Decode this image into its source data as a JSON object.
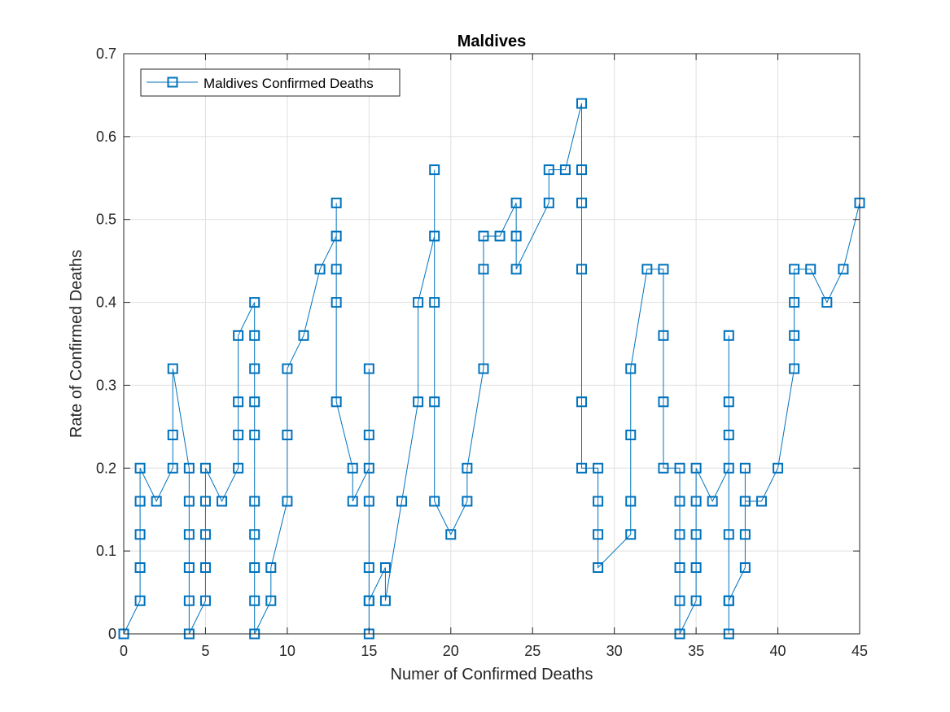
{
  "chart_data": {
    "type": "line",
    "title": "Maldives",
    "xlabel": "Numer of Confirmed Deaths",
    "ylabel": "Rate of Confirmed Deaths",
    "xlim": [
      0,
      45
    ],
    "ylim": [
      0,
      0.7
    ],
    "xticks": [
      "0",
      "5",
      "10",
      "15",
      "20",
      "25",
      "30",
      "35",
      "40",
      "45"
    ],
    "yticks": [
      "0",
      "0.1",
      "0.2",
      "0.3",
      "0.4",
      "0.5",
      "0.6",
      "0.7"
    ],
    "grid": true,
    "legend_position": "top-left",
    "marker": "square",
    "color": "#0072BD",
    "series": [
      {
        "name": "Maldives Confirmed Deaths",
        "x": [
          0,
          0,
          1,
          1,
          1,
          1,
          1,
          2,
          3,
          3,
          3,
          4,
          4,
          4,
          4,
          4,
          4,
          5,
          5,
          5,
          5,
          5,
          6,
          7,
          7,
          7,
          7,
          8,
          8,
          8,
          8,
          8,
          8,
          8,
          8,
          8,
          8,
          9,
          9,
          10,
          10,
          10,
          11,
          12,
          13,
          13,
          13,
          13,
          13,
          14,
          14,
          15,
          15,
          15,
          15,
          15,
          15,
          15,
          15,
          16,
          16,
          17,
          18,
          18,
          19,
          19,
          19,
          19,
          19,
          20,
          21,
          21,
          22,
          22,
          22,
          23,
          24,
          24,
          24,
          26,
          26,
          27,
          28,
          28,
          28,
          28,
          28,
          28,
          29,
          29,
          29,
          29,
          31,
          31,
          31,
          31,
          32,
          33,
          33,
          33,
          33,
          34,
          34,
          34,
          34,
          34,
          34,
          35,
          35,
          35,
          35,
          35,
          36,
          37,
          37,
          37,
          37,
          37,
          37,
          37,
          37,
          38,
          38,
          38,
          38,
          38,
          39,
          40,
          41,
          41,
          41,
          41,
          42,
          43,
          44,
          45
        ],
        "y": [
          0,
          0,
          0.04,
          0.08,
          0.12,
          0.16,
          0.2,
          0.16,
          0.2,
          0.24,
          0.32,
          0.2,
          0.16,
          0.12,
          0.08,
          0.04,
          0,
          0.04,
          0.08,
          0.12,
          0.16,
          0.2,
          0.16,
          0.2,
          0.24,
          0.28,
          0.36,
          0.4,
          0.36,
          0.32,
          0.28,
          0.24,
          0.16,
          0.12,
          0.08,
          0.04,
          0,
          0.04,
          0.08,
          0.16,
          0.24,
          0.32,
          0.36,
          0.44,
          0.48,
          0.52,
          0.44,
          0.4,
          0.28,
          0.2,
          0.16,
          0.2,
          0.24,
          0.32,
          0.16,
          0.08,
          0.04,
          0,
          0.04,
          0.08,
          0.04,
          0.16,
          0.28,
          0.4,
          0.48,
          0.56,
          0.4,
          0.28,
          0.16,
          0.12,
          0.16,
          0.2,
          0.32,
          0.44,
          0.48,
          0.48,
          0.52,
          0.48,
          0.44,
          0.52,
          0.56,
          0.56,
          0.64,
          0.56,
          0.52,
          0.44,
          0.28,
          0.2,
          0.2,
          0.16,
          0.12,
          0.08,
          0.12,
          0.16,
          0.24,
          0.32,
          0.44,
          0.44,
          0.36,
          0.28,
          0.2,
          0.2,
          0.16,
          0.12,
          0.08,
          0.04,
          0,
          0.04,
          0.08,
          0.12,
          0.16,
          0.2,
          0.16,
          0.2,
          0.24,
          0.28,
          0.36,
          0.12,
          0.04,
          0,
          0.04,
          0.08,
          0.12,
          0.16,
          0.2,
          0.16,
          0.16,
          0.2,
          0.32,
          0.36,
          0.4,
          0.44,
          0.44,
          0.4,
          0.44,
          0.52
        ]
      }
    ]
  }
}
